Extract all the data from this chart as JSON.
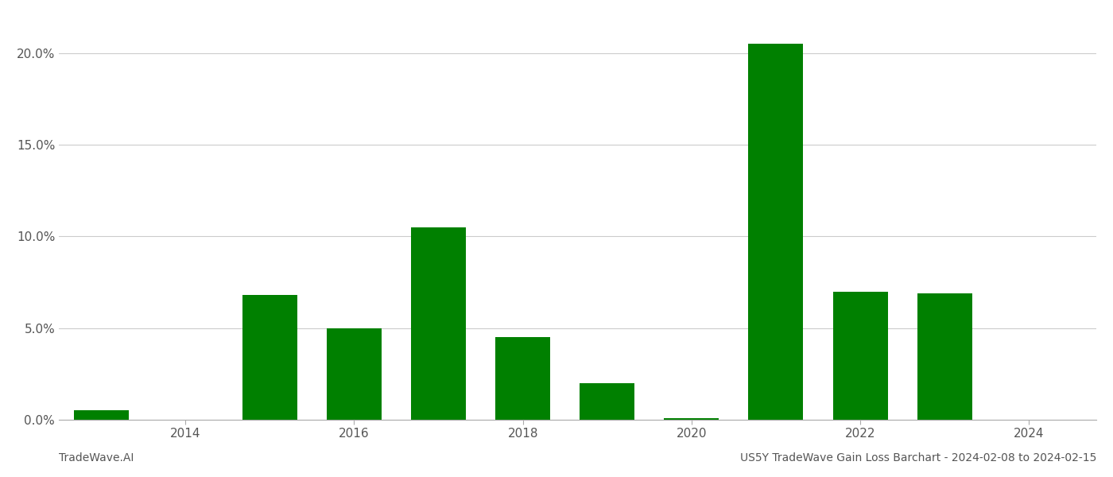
{
  "years": [
    2013,
    2014,
    2015,
    2016,
    2017,
    2018,
    2019,
    2020,
    2021,
    2022,
    2023
  ],
  "values": [
    0.005,
    0.0,
    0.068,
    0.05,
    0.105,
    0.045,
    0.02,
    0.001,
    0.205,
    0.07,
    0.069
  ],
  "bar_color": "#008000",
  "title": "US5Y TradeWave Gain Loss Barchart - 2024-02-08 to 2024-02-15",
  "left_label": "TradeWave.AI",
  "ylim": [
    0,
    0.22
  ],
  "yticks": [
    0.0,
    0.05,
    0.1,
    0.15,
    0.2
  ],
  "ytick_labels": [
    "0.0%",
    "5.0%",
    "10.0%",
    "15.0%",
    "20.0%"
  ],
  "xtick_positions": [
    2014,
    2016,
    2018,
    2020,
    2022,
    2024
  ],
  "xtick_labels": [
    "2014",
    "2016",
    "2018",
    "2020",
    "2022",
    "2024"
  ],
  "xlim": [
    2012.5,
    2024.8
  ],
  "background_color": "#ffffff",
  "grid_color": "#cccccc",
  "bar_width": 0.65
}
